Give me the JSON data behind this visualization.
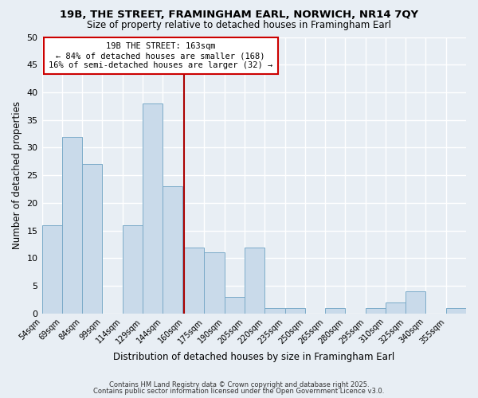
{
  "title": "19B, THE STREET, FRAMINGHAM EARL, NORWICH, NR14 7QY",
  "subtitle": "Size of property relative to detached houses in Framingham Earl",
  "xlabel": "Distribution of detached houses by size in Framingham Earl",
  "ylabel": "Number of detached properties",
  "bins": [
    54,
    69,
    84,
    99,
    114,
    129,
    144,
    160,
    175,
    190,
    205,
    220,
    235,
    250,
    265,
    280,
    295,
    310,
    325,
    340,
    355
  ],
  "counts": [
    16,
    32,
    27,
    0,
    16,
    38,
    23,
    12,
    11,
    3,
    12,
    1,
    1,
    0,
    1,
    0,
    1,
    2,
    4,
    0,
    1
  ],
  "bar_color": "#c9daea",
  "bar_edgecolor": "#7aaac8",
  "vline_x": 160,
  "vline_color": "#aa0000",
  "annotation_title": "19B THE STREET: 163sqm",
  "annotation_line1": "← 84% of detached houses are smaller (168)",
  "annotation_line2": "16% of semi-detached houses are larger (32) →",
  "annotation_box_color": "#cc0000",
  "ylim": [
    0,
    50
  ],
  "yticks": [
    0,
    5,
    10,
    15,
    20,
    25,
    30,
    35,
    40,
    45,
    50
  ],
  "bg_color": "#e8eef4",
  "grid_color": "#ffffff",
  "footer1": "Contains HM Land Registry data © Crown copyright and database right 2025.",
  "footer2": "Contains public sector information licensed under the Open Government Licence v3.0."
}
